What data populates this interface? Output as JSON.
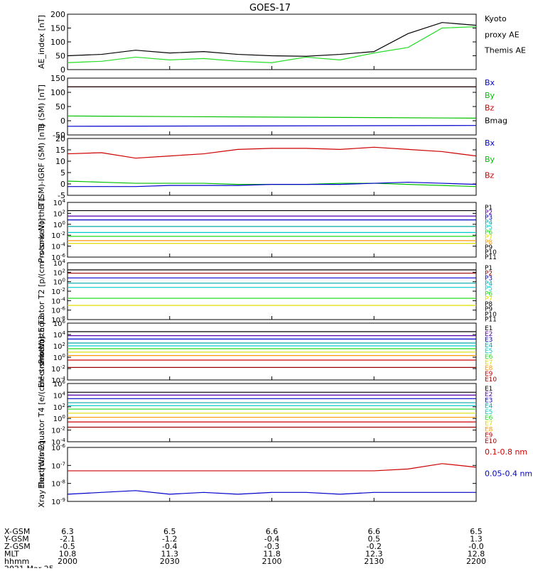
{
  "title": "GOES-17",
  "colors": {
    "black": "#000000",
    "blue": "#0000cc",
    "green": "#00c000",
    "red": "#cc0000",
    "bright_green": "#22dd22",
    "navy": "#000088",
    "purple": "#5500aa",
    "cyan": "#00cccc",
    "teal": "#00aaaa",
    "yellow": "#dddd00",
    "orange": "#ff9900",
    "darkred": "#990000"
  },
  "x_labels": {
    "rows": [
      "X-GSM",
      "Y-GSM",
      "Z-GSM",
      "MLT",
      "hhmm",
      "2021 Mar 25"
    ],
    "columns": [
      {
        "x": "6.3",
        "y": "-2.1",
        "z": "-0.5",
        "mlt": "10.8",
        "hhmm": "2000"
      },
      {
        "x": "6.5",
        "y": "-1.2",
        "z": "-0.4",
        "mlt": "11.3",
        "hhmm": "2030"
      },
      {
        "x": "6.6",
        "y": "-0.4",
        "z": "-0.3",
        "mlt": "11.8",
        "hhmm": "2100"
      },
      {
        "x": "6.6",
        "y": "0.5",
        "z": "-0.2",
        "mlt": "12.3",
        "hhmm": "2130"
      },
      {
        "x": "6.5",
        "y": "1.3",
        "z": "-0.0",
        "mlt": "12.8",
        "hhmm": "2200"
      }
    ]
  },
  "chart_data": [
    {
      "type": "line",
      "ylabel": "AE_index [nT]",
      "yticks": [
        "200",
        "150",
        "100",
        "50",
        "0"
      ],
      "ylim": [
        0,
        200
      ],
      "log": false,
      "x": [
        0,
        10,
        20,
        30,
        40,
        50,
        60,
        70,
        80,
        90,
        100,
        110,
        120
      ],
      "series": [
        {
          "name": "Kyoto proxy AE",
          "color": "#22dd22",
          "values": [
            25,
            30,
            45,
            35,
            40,
            30,
            25,
            45,
            35,
            60,
            80,
            150,
            155
          ]
        },
        {
          "name": "Themis AE",
          "color": "#000000",
          "values": [
            50,
            55,
            70,
            60,
            65,
            55,
            50,
            48,
            55,
            65,
            130,
            170,
            160
          ]
        }
      ],
      "legend": [
        "Kyoto",
        "proxy AE",
        "Themis AE"
      ]
    },
    {
      "type": "line",
      "ylabel": "B (SM) [nT]",
      "yticks": [
        "150",
        "100",
        "50",
        "0",
        "-50"
      ],
      "ylim": [
        -60,
        150
      ],
      "log": false,
      "x": [
        0,
        120
      ],
      "series": [
        {
          "name": "Bz",
          "color": "#cc0000",
          "values": [
            118,
            118
          ]
        },
        {
          "name": "By",
          "color": "#00c000",
          "values": [
            10,
            2
          ]
        },
        {
          "name": "Bx",
          "color": "#0000cc",
          "values": [
            -28,
            -25
          ]
        },
        {
          "name": "Bmag",
          "color": "#000000",
          "values": [
            118,
            118
          ]
        }
      ],
      "legend": [
        "Bx",
        "By",
        "Bz",
        "Bmag"
      ]
    },
    {
      "type": "line",
      "ylabel": "B (SM)-IGRF (SM) [nT]",
      "yticks": [
        "20",
        "15",
        "10",
        "5",
        "0",
        "-5"
      ],
      "ylim": [
        -6,
        20
      ],
      "log": false,
      "x": [
        0,
        10,
        20,
        30,
        40,
        50,
        60,
        70,
        80,
        90,
        100,
        110,
        120
      ],
      "series": [
        {
          "name": "Bz",
          "color": "#cc0000",
          "values": [
            13,
            13.5,
            11,
            12,
            13,
            15,
            15.5,
            15.5,
            15,
            16,
            15,
            14,
            12
          ]
        },
        {
          "name": "By",
          "color": "#00c000",
          "values": [
            0.5,
            0,
            -0.5,
            -0.5,
            -0.5,
            -1,
            -1,
            -1,
            -0.5,
            -0.5,
            -1,
            -1.5,
            -2
          ]
        },
        {
          "name": "Bx",
          "color": "#0000cc",
          "values": [
            -2,
            -2,
            -2,
            -1.5,
            -1.5,
            -1.5,
            -1,
            -1,
            -1,
            -0.5,
            0,
            -0.5,
            -1
          ]
        }
      ],
      "legend": [
        "Bx",
        "By",
        "Bz"
      ]
    },
    {
      "type": "line",
      "ylabel": "Protons North T1",
      "yticks": [
        "10^4",
        "10^2",
        "10^0",
        "10^-2",
        "10^-4",
        "10^-6"
      ],
      "ylim": [
        -6,
        4
      ],
      "log": true,
      "x": [
        0,
        120
      ],
      "series": [
        {
          "name": "P1",
          "color": "#000000",
          "values": [
            2.5,
            2.5
          ]
        },
        {
          "name": "P2",
          "color": "#5500aa",
          "values": [
            1.5,
            1.5
          ]
        },
        {
          "name": "P3",
          "color": "#0000cc",
          "values": [
            0.8,
            0.8
          ]
        },
        {
          "name": "P4",
          "color": "#00aaaa",
          "values": [
            -0.4,
            -0.4
          ]
        },
        {
          "name": "P5",
          "color": "#00cccc",
          "values": [
            -1.5,
            -1.5
          ]
        },
        {
          "name": "P6",
          "color": "#22dd22",
          "values": [
            -2.2,
            -2.2
          ]
        },
        {
          "name": "P7",
          "color": "#dddd00",
          "values": [
            -3.5,
            -3.5
          ]
        },
        {
          "name": "P8",
          "color": "#ff9900",
          "values": [
            -3.0,
            -3.0
          ]
        }
      ],
      "legend": [
        "P1",
        "P2",
        "P3",
        "P4",
        "P5",
        "P6",
        "P7",
        "P8",
        "P9",
        "P10",
        "P11"
      ]
    },
    {
      "type": "line",
      "ylabel": "Protons Equator T2 [p/(cm²-s-sr-keV)]",
      "yticks": [
        "10^4",
        "10^2",
        "10^0",
        "10^-2",
        "10^-4",
        "10^-6",
        "10^-8"
      ],
      "ylim": [
        -8,
        4
      ],
      "log": true,
      "x": [
        0,
        120
      ],
      "series": [
        {
          "name": "P1",
          "color": "#000000",
          "values": [
            2.5,
            2.5
          ]
        },
        {
          "name": "P2",
          "color": "#990000",
          "values": [
            1.8,
            1.8
          ]
        },
        {
          "name": "P3",
          "color": "#0000cc",
          "values": [
            0.8,
            0.8
          ]
        },
        {
          "name": "P4",
          "color": "#00aaaa",
          "values": [
            -0.3,
            -0.3
          ]
        },
        {
          "name": "P5",
          "color": "#00cccc",
          "values": [
            -1.2,
            -1.2
          ]
        },
        {
          "name": "P6",
          "color": "#22dd22",
          "values": [
            -3.5,
            -3.5
          ]
        },
        {
          "name": "P7",
          "color": "#dddd00",
          "values": [
            -5.0,
            -5.0
          ]
        }
      ],
      "legend": [
        "P1",
        "P2",
        "P3",
        "P4",
        "P5",
        "P6",
        "P7",
        "P8",
        "P9",
        "P10",
        "P11"
      ]
    },
    {
      "type": "line",
      "ylabel": "Electrons North T3",
      "yticks": [
        "10^6",
        "10^4",
        "10^2",
        "10^0",
        "10^-2",
        "10^-4"
      ],
      "ylim": [
        -4,
        6
      ],
      "log": true,
      "x": [
        0,
        120
      ],
      "series": [
        {
          "name": "E1",
          "color": "#000000",
          "values": [
            4.5,
            4.5
          ]
        },
        {
          "name": "E2",
          "color": "#5500aa",
          "values": [
            3.8,
            3.8
          ]
        },
        {
          "name": "E3",
          "color": "#0000cc",
          "values": [
            3.2,
            3.2
          ]
        },
        {
          "name": "E4",
          "color": "#00aaaa",
          "values": [
            2.5,
            2.5
          ]
        },
        {
          "name": "E5",
          "color": "#00cccc",
          "values": [
            2.0,
            2.0
          ]
        },
        {
          "name": "E6",
          "color": "#22dd22",
          "values": [
            1.5,
            1.5
          ]
        },
        {
          "name": "E7",
          "color": "#dddd00",
          "values": [
            0.9,
            0.9
          ]
        },
        {
          "name": "E8",
          "color": "#ff9900",
          "values": [
            0.3,
            0.3
          ]
        },
        {
          "name": "E9",
          "color": "#cc0000",
          "values": [
            -0.5,
            -0.5
          ]
        },
        {
          "name": "E10",
          "color": "#990000",
          "values": [
            -1.8,
            -1.8
          ]
        }
      ],
      "legend": [
        "E1",
        "E2",
        "E3",
        "E4",
        "E5",
        "E6",
        "E7",
        "E8",
        "E9",
        "E10"
      ]
    },
    {
      "type": "line",
      "ylabel": "Electrons Equator T4 [e/(cm²-s-sr-keV)]",
      "yticks": [
        "10^6",
        "10^4",
        "10^2",
        "10^0",
        "10^-2",
        "10^-4"
      ],
      "ylim": [
        -4,
        6
      ],
      "log": true,
      "x": [
        0,
        120
      ],
      "series": [
        {
          "name": "E1",
          "color": "#000000",
          "values": [
            4.5,
            4.5
          ]
        },
        {
          "name": "E2",
          "color": "#5500aa",
          "values": [
            4.0,
            4.0
          ]
        },
        {
          "name": "E3",
          "color": "#0000cc",
          "values": [
            3.4,
            3.4
          ]
        },
        {
          "name": "E4",
          "color": "#00aaaa",
          "values": [
            2.7,
            2.7
          ]
        },
        {
          "name": "E5",
          "color": "#00cccc",
          "values": [
            2.2,
            2.2
          ]
        },
        {
          "name": "E6",
          "color": "#22dd22",
          "values": [
            1.6,
            1.6
          ]
        },
        {
          "name": "E7",
          "color": "#dddd00",
          "values": [
            0.9,
            0.9
          ]
        },
        {
          "name": "E8",
          "color": "#ff9900",
          "values": [
            0.2,
            0.2
          ]
        },
        {
          "name": "E9",
          "color": "#cc0000",
          "values": [
            -0.6,
            -0.6
          ]
        },
        {
          "name": "E10",
          "color": "#990000",
          "values": [
            -1.5,
            -1.5
          ]
        }
      ],
      "legend": [
        "E1",
        "E2",
        "E3",
        "E4",
        "E5",
        "E6",
        "E7",
        "E8",
        "E9",
        "E10"
      ]
    },
    {
      "type": "line",
      "ylabel": "Xray flux [W/m2]",
      "yticks": [
        "10^-6",
        "10^-7",
        "10^-8",
        "10^-9"
      ],
      "ylim": [
        -9,
        -6
      ],
      "log": true,
      "x": [
        0,
        10,
        20,
        30,
        40,
        50,
        60,
        70,
        80,
        90,
        100,
        110,
        120
      ],
      "series": [
        {
          "name": "0.1-0.8 nm",
          "color": "#cc0000",
          "values": [
            -7.3,
            -7.3,
            -7.3,
            -7.3,
            -7.3,
            -7.3,
            -7.3,
            -7.3,
            -7.3,
            -7.3,
            -7.2,
            -6.9,
            -7.1
          ]
        },
        {
          "name": "0.05-0.4 nm",
          "color": "#0000cc",
          "values": [
            -8.6,
            -8.5,
            -8.4,
            -8.6,
            -8.5,
            -8.6,
            -8.5,
            -8.5,
            -8.6,
            -8.5,
            -8.5,
            -8.5,
            -8.5
          ]
        }
      ],
      "legend": [
        "0.1-0.8 nm",
        "0.05-0.4 nm"
      ]
    }
  ]
}
